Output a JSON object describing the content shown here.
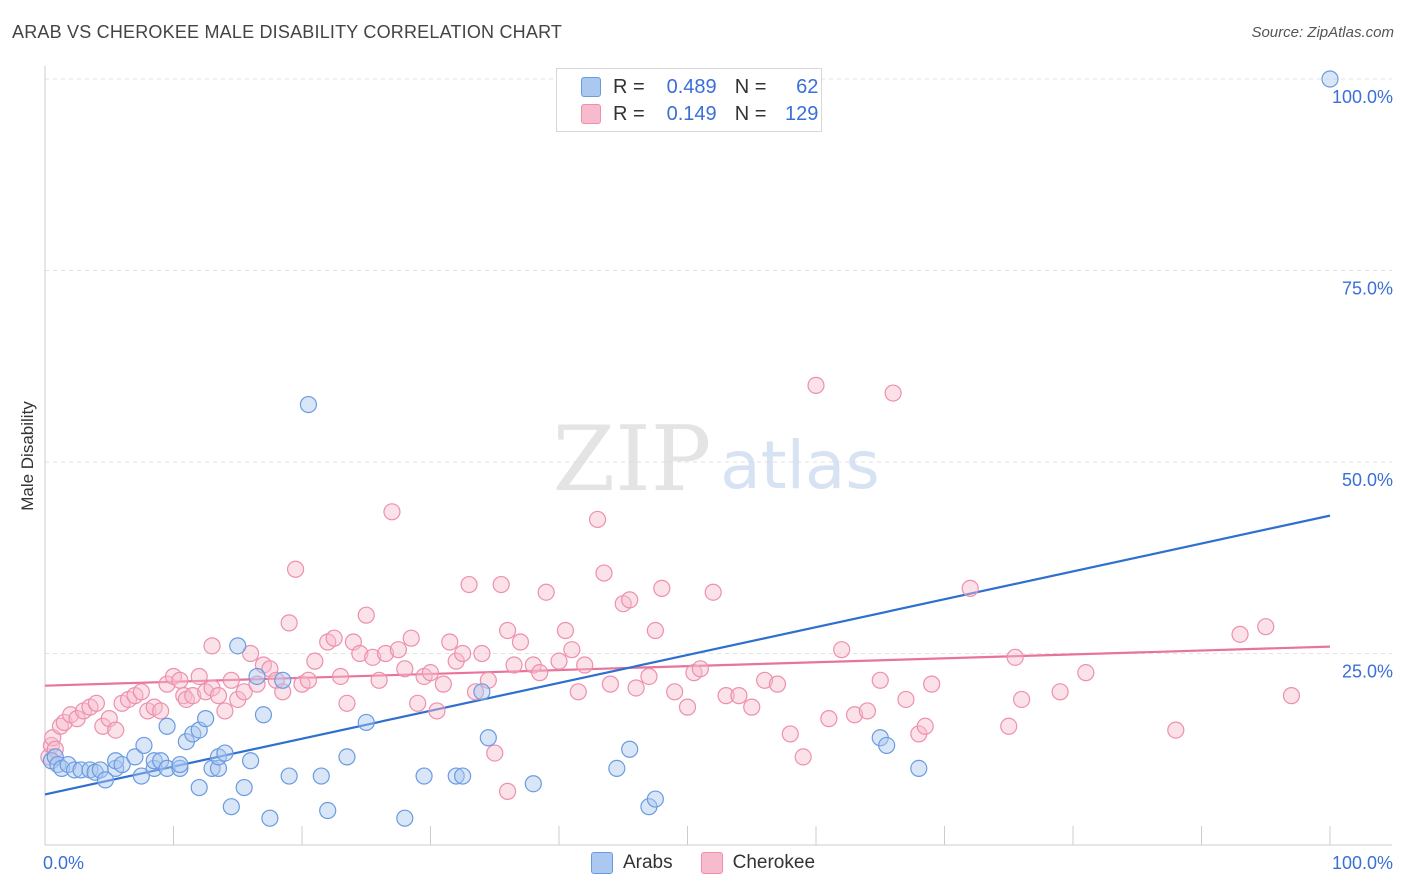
{
  "header": {
    "title": "ARAB VS CHEROKEE MALE DISABILITY CORRELATION CHART",
    "source": "Source: ZipAtlas.com"
  },
  "watermark": {
    "zip": "ZIP",
    "atlas": "atlas"
  },
  "legend": {
    "arabs": {
      "r_label": "R =",
      "r_value": "0.489",
      "n_label": "N =",
      "n_value": "62"
    },
    "cherokee": {
      "r_label": "R =",
      "r_value": "0.149",
      "n_label": "N =",
      "n_value": "129"
    }
  },
  "bottom_legend": {
    "arabs": "Arabs",
    "cherokee": "Cherokee"
  },
  "colors": {
    "arabs_fill": "#aac8f0",
    "arabs_stroke": "#6a9be0",
    "arabs_line": "#2f6fd0",
    "cherokee_fill": "#f6bccd",
    "cherokee_stroke": "#ee8fae",
    "cherokee_line": "#e8739c",
    "axis_text": "#3a6fd8"
  },
  "chart_data": {
    "type": "scatter",
    "title": "ARAB VS CHEROKEE MALE DISABILITY CORRELATION CHART",
    "xlabel": "",
    "ylabel": "Male Disability",
    "xlim": [
      0,
      100
    ],
    "ylim": [
      0,
      100
    ],
    "x_tick_labels": [
      "0.0%",
      "100.0%"
    ],
    "y_tick_labels": [
      "25.0%",
      "50.0%",
      "75.0%",
      "100.0%"
    ],
    "y_ticks": [
      25,
      50,
      75,
      100
    ],
    "grid": true,
    "legend_position": "top-center",
    "series": [
      {
        "name": "Arabs",
        "R": 0.489,
        "N": 62,
        "trend": [
          [
            0,
            6.6
          ],
          [
            100,
            43.0
          ]
        ],
        "points": [
          [
            0.5,
            11.0
          ],
          [
            0.8,
            11.5
          ],
          [
            1.0,
            10.5
          ],
          [
            1.3,
            10.0
          ],
          [
            1.8,
            10.5
          ],
          [
            2.3,
            9.8
          ],
          [
            2.8,
            9.8
          ],
          [
            3.5,
            9.8
          ],
          [
            3.9,
            9.5
          ],
          [
            4.3,
            9.8
          ],
          [
            4.7,
            8.5
          ],
          [
            5.5,
            10.0
          ],
          [
            5.5,
            11.0
          ],
          [
            6.0,
            10.5
          ],
          [
            7.0,
            11.5
          ],
          [
            7.5,
            9.0
          ],
          [
            7.7,
            13.0
          ],
          [
            8.5,
            10.0
          ],
          [
            8.5,
            11.0
          ],
          [
            9.0,
            11.0
          ],
          [
            9.5,
            10.0
          ],
          [
            9.5,
            15.5
          ],
          [
            10.5,
            10.0
          ],
          [
            10.5,
            10.5
          ],
          [
            11.0,
            13.5
          ],
          [
            11.5,
            14.5
          ],
          [
            12.0,
            7.5
          ],
          [
            12.0,
            15.0
          ],
          [
            12.5,
            16.5
          ],
          [
            13.0,
            10.0
          ],
          [
            13.5,
            10.0
          ],
          [
            13.5,
            11.5
          ],
          [
            14.0,
            12.0
          ],
          [
            14.5,
            5.0
          ],
          [
            15.0,
            26.0
          ],
          [
            15.5,
            7.5
          ],
          [
            16.0,
            11.0
          ],
          [
            16.5,
            22.0
          ],
          [
            17.0,
            17.0
          ],
          [
            17.5,
            3.5
          ],
          [
            18.5,
            21.5
          ],
          [
            19.0,
            9.0
          ],
          [
            20.5,
            57.5
          ],
          [
            21.5,
            9.0
          ],
          [
            22.0,
            4.5
          ],
          [
            23.5,
            11.5
          ],
          [
            25.0,
            16.0
          ],
          [
            28.0,
            3.5
          ],
          [
            29.5,
            9.0
          ],
          [
            32.0,
            9.0
          ],
          [
            32.5,
            9.0
          ],
          [
            34.5,
            14.0
          ],
          [
            34.0,
            20.0
          ],
          [
            38.0,
            8.0
          ],
          [
            44.5,
            10.0
          ],
          [
            45.5,
            12.5
          ],
          [
            47.0,
            5.0
          ],
          [
            47.5,
            6.0
          ],
          [
            65.0,
            14.0
          ],
          [
            65.5,
            13.0
          ],
          [
            68.0,
            10.0
          ],
          [
            100.0,
            100.0
          ]
        ]
      },
      {
        "name": "Cherokee",
        "R": 0.149,
        "N": 129,
        "trend": [
          [
            0,
            20.8
          ],
          [
            100,
            25.9
          ]
        ],
        "points": [
          [
            0.3,
            11.5
          ],
          [
            0.5,
            13.0
          ],
          [
            0.6,
            14.0
          ],
          [
            0.8,
            12.5
          ],
          [
            1.2,
            15.5
          ],
          [
            1.5,
            16.0
          ],
          [
            2.0,
            17.0
          ],
          [
            2.5,
            16.5
          ],
          [
            3.0,
            17.5
          ],
          [
            3.5,
            18.0
          ],
          [
            4.0,
            18.5
          ],
          [
            4.5,
            15.5
          ],
          [
            5.0,
            16.5
          ],
          [
            5.5,
            15.0
          ],
          [
            6.0,
            18.5
          ],
          [
            6.5,
            19.0
          ],
          [
            7.0,
            19.5
          ],
          [
            7.5,
            20.0
          ],
          [
            8.0,
            17.5
          ],
          [
            8.5,
            18.0
          ],
          [
            9.0,
            17.5
          ],
          [
            9.5,
            21.0
          ],
          [
            10.0,
            22.0
          ],
          [
            10.5,
            21.5
          ],
          [
            10.8,
            19.5
          ],
          [
            11.0,
            19.0
          ],
          [
            11.5,
            19.5
          ],
          [
            12.0,
            22.0
          ],
          [
            12.5,
            20.0
          ],
          [
            13.0,
            20.5
          ],
          [
            13.0,
            26.0
          ],
          [
            13.5,
            19.5
          ],
          [
            14.0,
            17.5
          ],
          [
            14.5,
            21.5
          ],
          [
            15.0,
            19.0
          ],
          [
            15.5,
            20.0
          ],
          [
            16.0,
            25.0
          ],
          [
            16.5,
            21.0
          ],
          [
            17.0,
            23.5
          ],
          [
            17.5,
            23.0
          ],
          [
            18.0,
            21.5
          ],
          [
            18.5,
            20.0
          ],
          [
            19.0,
            29.0
          ],
          [
            19.5,
            36.0
          ],
          [
            20.0,
            21.0
          ],
          [
            20.5,
            21.5
          ],
          [
            21.0,
            24.0
          ],
          [
            22.0,
            26.5
          ],
          [
            22.5,
            27.0
          ],
          [
            23.0,
            22.0
          ],
          [
            23.5,
            18.5
          ],
          [
            24.0,
            26.5
          ],
          [
            24.5,
            25.0
          ],
          [
            25.0,
            30.0
          ],
          [
            25.5,
            24.5
          ],
          [
            26.0,
            21.5
          ],
          [
            26.5,
            25.0
          ],
          [
            27.0,
            43.5
          ],
          [
            27.5,
            25.5
          ],
          [
            28.0,
            23.0
          ],
          [
            28.5,
            27.0
          ],
          [
            29.0,
            18.5
          ],
          [
            29.5,
            22.0
          ],
          [
            30.0,
            22.5
          ],
          [
            30.5,
            17.5
          ],
          [
            31.0,
            21.0
          ],
          [
            31.5,
            26.5
          ],
          [
            32.0,
            24.0
          ],
          [
            32.5,
            25.0
          ],
          [
            33.0,
            34.0
          ],
          [
            33.5,
            20.0
          ],
          [
            34.0,
            25.0
          ],
          [
            34.5,
            21.5
          ],
          [
            35.0,
            12.0
          ],
          [
            35.5,
            34.0
          ],
          [
            36.0,
            28.0
          ],
          [
            36.5,
            23.5
          ],
          [
            37.0,
            26.5
          ],
          [
            38.0,
            23.5
          ],
          [
            38.5,
            22.5
          ],
          [
            39.0,
            33.0
          ],
          [
            40.0,
            24.0
          ],
          [
            40.5,
            28.0
          ],
          [
            41.0,
            25.5
          ],
          [
            41.5,
            20.0
          ],
          [
            42.0,
            23.5
          ],
          [
            43.0,
            42.5
          ],
          [
            43.5,
            35.5
          ],
          [
            44.0,
            21.0
          ],
          [
            45.0,
            31.5
          ],
          [
            45.5,
            32.0
          ],
          [
            46.0,
            20.5
          ],
          [
            47.0,
            22.0
          ],
          [
            47.5,
            28.0
          ],
          [
            48.0,
            33.5
          ],
          [
            49.0,
            20.0
          ],
          [
            50.0,
            18.0
          ],
          [
            50.5,
            22.5
          ],
          [
            51.0,
            23.0
          ],
          [
            52.0,
            33.0
          ],
          [
            53.0,
            19.5
          ],
          [
            54.0,
            19.5
          ],
          [
            55.0,
            18.0
          ],
          [
            56.0,
            21.5
          ],
          [
            57.0,
            21.0
          ],
          [
            58.0,
            14.5
          ],
          [
            59.0,
            11.5
          ],
          [
            60.0,
            60.0
          ],
          [
            61.0,
            16.5
          ],
          [
            62.0,
            25.5
          ],
          [
            63.0,
            17.0
          ],
          [
            64.0,
            17.5
          ],
          [
            65.0,
            21.5
          ],
          [
            66.0,
            59.0
          ],
          [
            67.0,
            19.0
          ],
          [
            68.0,
            14.5
          ],
          [
            68.5,
            15.5
          ],
          [
            69.0,
            21.0
          ],
          [
            72.0,
            33.5
          ],
          [
            75.0,
            15.5
          ],
          [
            75.5,
            24.5
          ],
          [
            76.0,
            19.0
          ],
          [
            79.0,
            20.0
          ],
          [
            81.0,
            22.5
          ],
          [
            88.0,
            15.0
          ],
          [
            93.0,
            27.5
          ],
          [
            95.0,
            28.5
          ],
          [
            97.0,
            19.5
          ],
          [
            36.0,
            7.0
          ]
        ]
      }
    ]
  }
}
